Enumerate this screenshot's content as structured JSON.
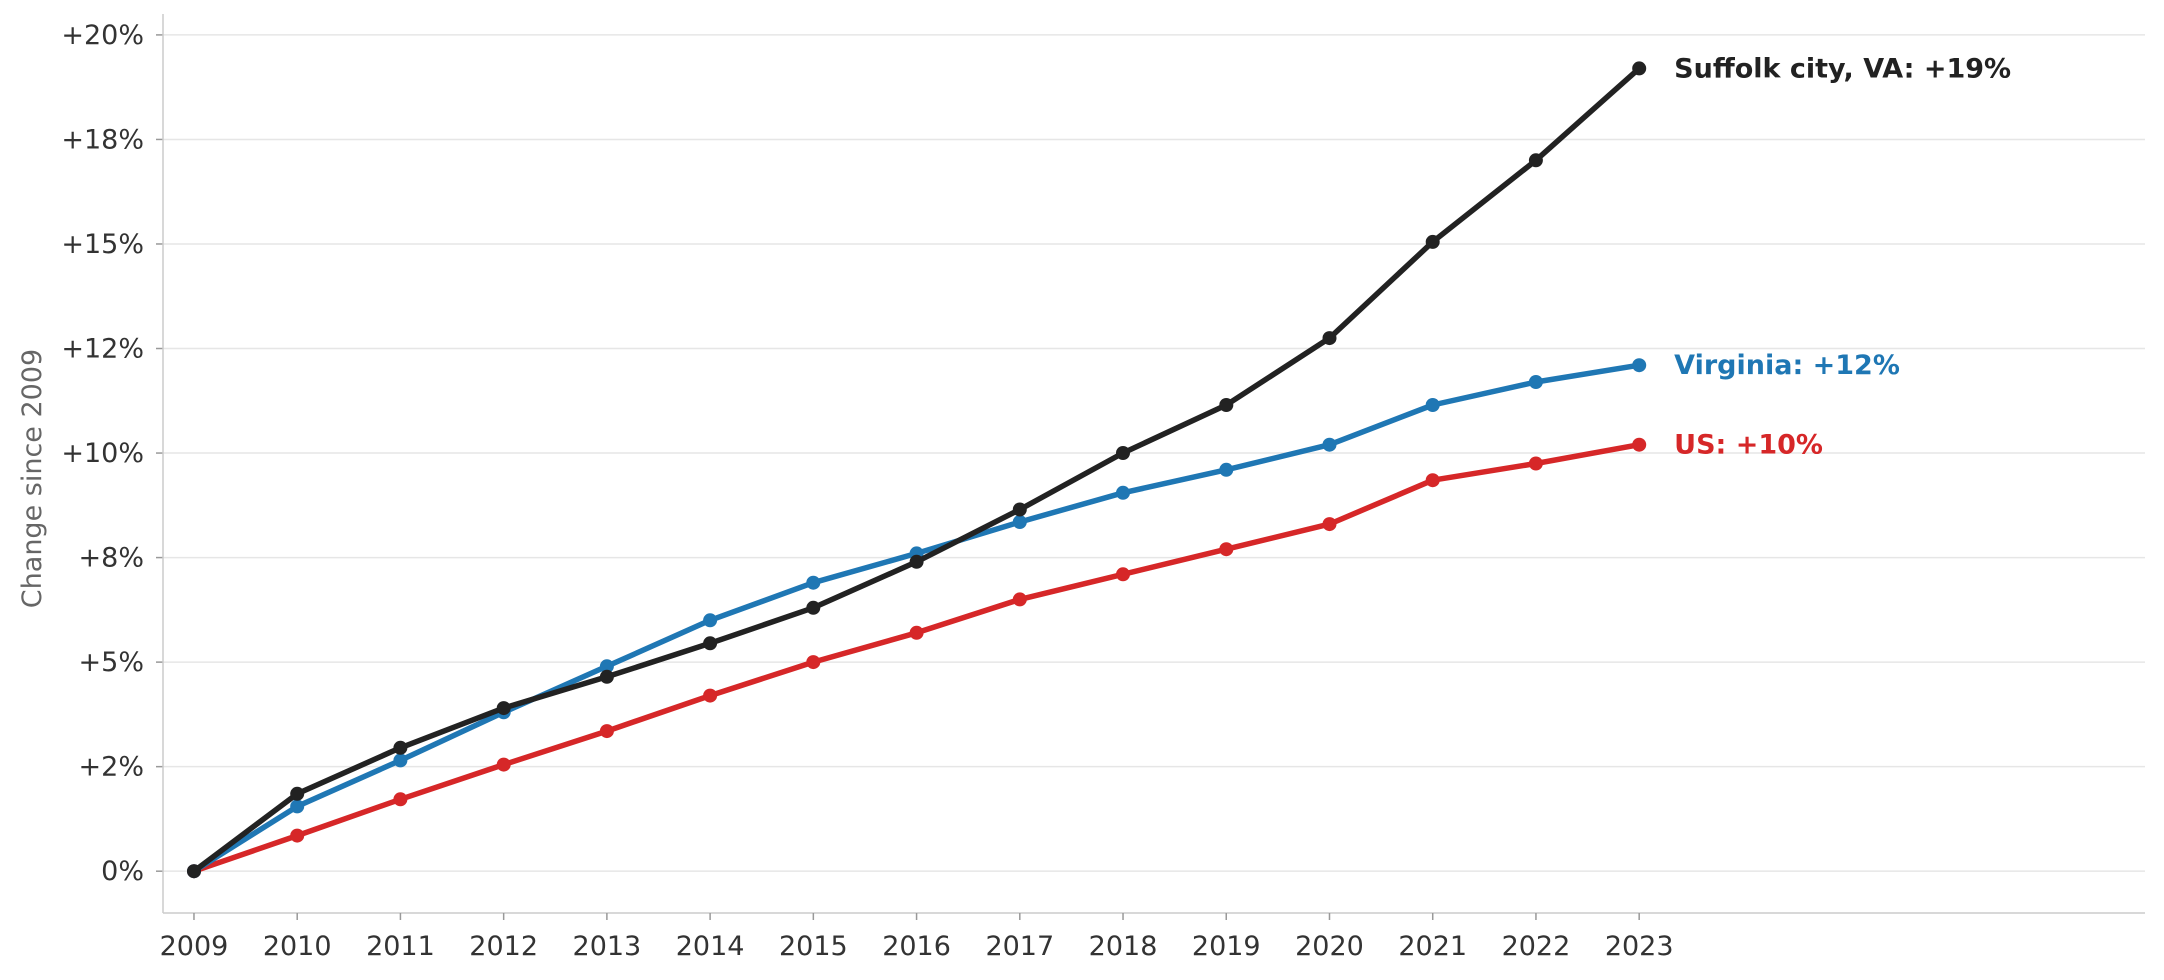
{
  "chart_data": {
    "type": "line",
    "title": "",
    "xlabel": "",
    "ylabel": "Change since 2009",
    "x": [
      2009,
      2010,
      2011,
      2012,
      2013,
      2014,
      2015,
      2016,
      2017,
      2018,
      2019,
      2020,
      2021,
      2022,
      2023
    ],
    "x_tick_labels": [
      "2009",
      "2010",
      "2011",
      "2012",
      "2013",
      "2014",
      "2015",
      "2016",
      "2017",
      "2018",
      "2019",
      "2020",
      "2021",
      "2022",
      "2023"
    ],
    "y_ticks": [
      0,
      2.5,
      5,
      7.5,
      10,
      12.5,
      15,
      17.5,
      20
    ],
    "y_tick_labels": [
      "0%",
      "+2%",
      "+5%",
      "+8%",
      "+10%",
      "+12%",
      "+15%",
      "+18%",
      "+20%"
    ],
    "ylim": [
      -1,
      20.5
    ],
    "xlim": [
      2008.7,
      2027.9
    ],
    "grid": "horizontal",
    "legend": "none",
    "series": [
      {
        "key": "us",
        "color": "#d62728",
        "values": [
          0,
          0.85,
          1.72,
          2.55,
          3.35,
          4.2,
          5.0,
          5.7,
          6.5,
          7.1,
          7.7,
          8.3,
          9.35,
          9.75,
          10.2
        ],
        "end_label": "US: +10%"
      },
      {
        "key": "virginia",
        "color": "#1f77b4",
        "values": [
          0,
          1.55,
          2.65,
          3.8,
          4.9,
          6.0,
          6.9,
          7.6,
          8.35,
          9.05,
          9.6,
          10.2,
          11.15,
          11.7,
          12.1
        ],
        "end_label": "Virginia: +12%"
      },
      {
        "key": "suffolk",
        "color": "#222222",
        "values": [
          0,
          1.85,
          2.95,
          3.9,
          4.65,
          5.45,
          6.3,
          7.4,
          8.65,
          10.0,
          11.15,
          12.75,
          15.05,
          17.0,
          19.2
        ],
        "end_label": "Suffolk city, VA: +19%"
      }
    ]
  }
}
